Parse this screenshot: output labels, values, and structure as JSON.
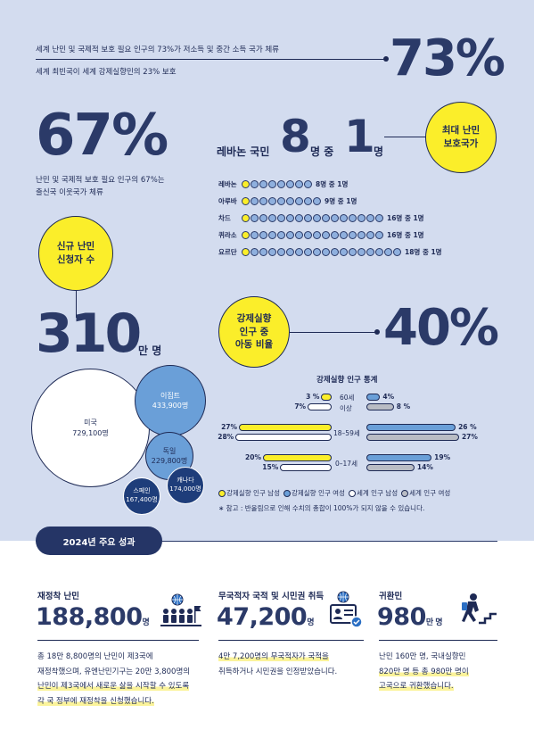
{
  "header": {
    "line1": "세계 난민 및 국제적 보호 필요 인구의 73%가 저소득 및 중간 소득 국가 체류",
    "line2": "세계 최빈국이 세계 강제실향민의 23% 보호",
    "big": "73%"
  },
  "stat67": {
    "big": "67%",
    "desc1": "난민 및 국제적 보호 필요 인구의 67%는",
    "desc2": "출신국 이웃국가 체류"
  },
  "lebanon": {
    "prefix": "레바논 국민",
    "num1": "8",
    "mid": "명 중",
    "num2": "1",
    "suffix": "명",
    "circle": "최대 난민\n보호국가"
  },
  "dot_rows": [
    {
      "country": "레바논",
      "total": 8,
      "label": "8명 중 1명"
    },
    {
      "country": "아루바",
      "total": 9,
      "label": "9명 중 1명"
    },
    {
      "country": "차드",
      "total": 16,
      "label": "16명 중 1명"
    },
    {
      "country": "퀴라소",
      "total": 16,
      "label": "16명 중 1명"
    },
    {
      "country": "요르단",
      "total": 18,
      "label": "18명 중 1명"
    }
  ],
  "applicants": {
    "circle": "신규 난민\n신청자 수",
    "big": "310",
    "unit": "만 명"
  },
  "bubbles": [
    {
      "name": "미국",
      "value": "729,100명"
    },
    {
      "name": "이집트",
      "value": "433,900명"
    },
    {
      "name": "독일",
      "value": "229,800명"
    },
    {
      "name": "캐나다",
      "value": "174,000명"
    },
    {
      "name": "스페인",
      "value": "167,400명"
    }
  ],
  "displaced": {
    "circle": "강제실향\n인구 중\n아동 비율",
    "big": "40%",
    "chart_title": "강제실향 인구 통계"
  },
  "chart_data": {
    "type": "bar",
    "title": "강제실향 인구 통계",
    "categories": [
      "60세\n이상",
      "18–59세",
      "0–17세"
    ],
    "series": [
      {
        "name": "강제실향 인구 남성",
        "values": [
          3,
          27,
          20
        ]
      },
      {
        "name": "세계 인구 남성",
        "values": [
          7,
          28,
          15
        ]
      },
      {
        "name": "강제실향 인구 여성",
        "values": [
          4,
          26,
          19
        ]
      },
      {
        "name": "세계 인구 여성",
        "values": [
          8,
          27,
          14
        ]
      }
    ],
    "labels": {
      "dm": [
        "3 %",
        "27%",
        "20%"
      ],
      "wm": [
        "7%",
        "28%",
        "15%"
      ],
      "df": [
        "4%",
        "26 %",
        "19%"
      ],
      "wf": [
        "8 %",
        "27%",
        "14%"
      ]
    },
    "age_labels": [
      "60세",
      "이상",
      "18–59세",
      "0–17세"
    ],
    "colors": {
      "dm": "#fbee2a",
      "wm": "#ffffff",
      "df": "#6a9fd8",
      "wf": "#b9bcc4"
    }
  },
  "legend": [
    "강제실향 인구 남성",
    "강제실향 인구 여성",
    "세계 인구 남성",
    "세계 인구 여성"
  ],
  "footnote": "∗ 참고 : 반올림으로 인해 수치의 총합이 100%가 되지 않을 수 있습니다.",
  "section_badge": "2024년 주요 성과",
  "stats": [
    {
      "title": "재정착 난민",
      "value": "188,800",
      "unit": "명",
      "desc": [
        "총 18만 8,800명의 난민이 제3국에",
        "재정착했으며, 유엔난민기구는 20만 3,800명의",
        "난민이 제3국에서 새로운 삶을 시작할 수 있도록",
        "각 국 정부에 재정착을 신청했습니다."
      ]
    },
    {
      "title": "무국적자 국적 및 시민권 취득",
      "value": "47,200",
      "unit": "명",
      "desc": [
        "4만 7,200명의 무국적자가 국적을",
        "취득하거나 시민권을 인정받았습니다."
      ]
    },
    {
      "title": "귀환민",
      "value": "980",
      "unit": "만 명",
      "desc": [
        "난민 160만 명, 국내실향민",
        "820만 명 등 총 980만 명이",
        "고국으로 귀환했습니다."
      ]
    }
  ]
}
